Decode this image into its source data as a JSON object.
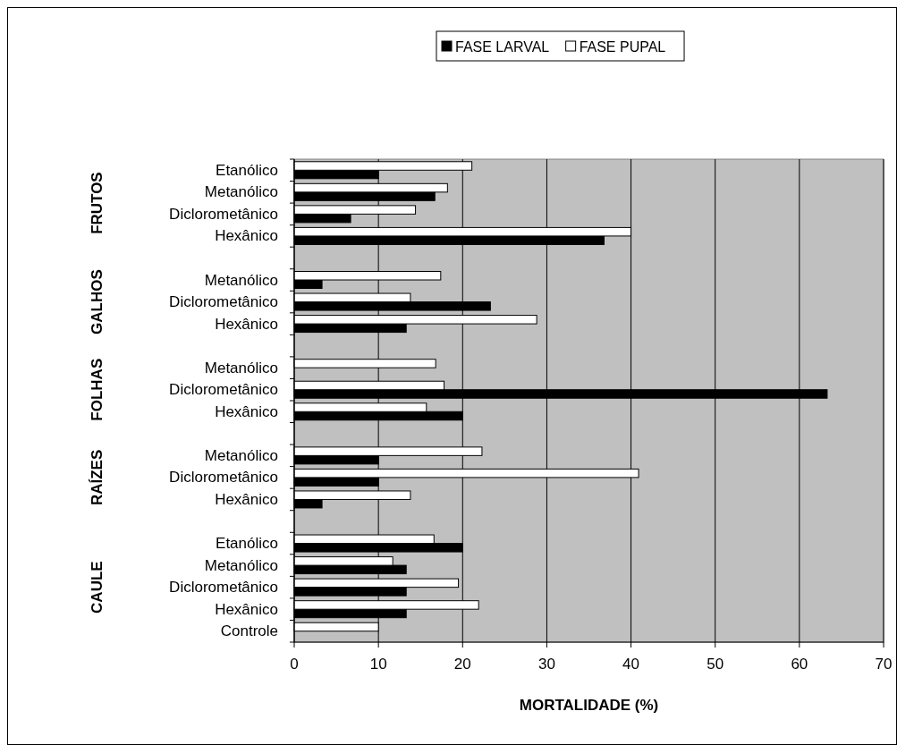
{
  "chart_data": {
    "type": "bar",
    "orientation": "horizontal",
    "xlabel": "MORTALIDADE (%)",
    "categories": [
      "Etanólico",
      "Metanólico",
      "Diclorometânico",
      "Hexânico",
      null,
      "Metanólico",
      "Diclorometânico",
      "Hexânico",
      null,
      "Metanólico",
      "Diclorometânico",
      "Hexânico",
      null,
      "Metanólico",
      "Diclorometânico",
      "Hexânico",
      null,
      "Etanólico",
      "Metanólico",
      "Diclorometânico",
      "Hexânico",
      "Controle"
    ],
    "series": [
      {
        "name": "FASE LARVAL",
        "color": "#000000",
        "values": [
          10,
          16.7,
          6.7,
          36.8,
          null,
          3.3,
          23.3,
          13.3,
          null,
          0,
          63.3,
          20,
          null,
          10,
          10,
          3.3,
          null,
          20,
          13.3,
          13.3,
          13.3,
          0
        ]
      },
      {
        "name": "FASE PUPAL",
        "color": "#ffffff",
        "values": [
          21.1,
          18.2,
          14.4,
          40,
          null,
          17.4,
          13.8,
          28.8,
          null,
          16.8,
          17.8,
          15.7,
          null,
          22.3,
          40.9,
          13.8,
          null,
          16.6,
          11.7,
          19.5,
          21.9,
          10
        ]
      }
    ],
    "annotations": [
      "FRUTOS",
      "GALHOS",
      "FOLHAS",
      "RAÍZES",
      "CAULE"
    ],
    "xlim": [
      0,
      70
    ],
    "xticks": [
      0,
      10,
      20,
      30,
      40,
      50,
      60,
      70
    ],
    "grid": "x",
    "legend": "top"
  }
}
